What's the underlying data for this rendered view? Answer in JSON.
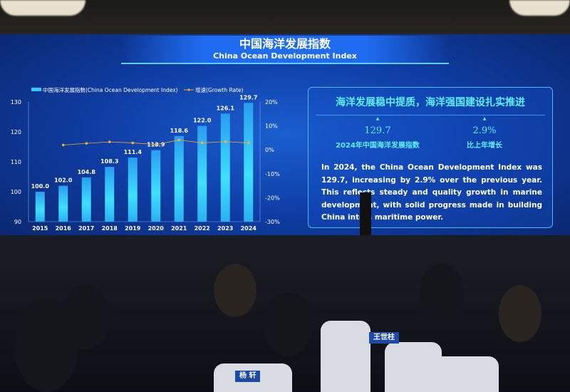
{
  "banner": {
    "title_zh": "中国海洋发展指数",
    "title_en": "China Ocean Development Index"
  },
  "chart_data": {
    "type": "bar+line",
    "categories": [
      "2015",
      "2016",
      "2017",
      "2018",
      "2019",
      "2020",
      "2021",
      "2022",
      "2023",
      "2024"
    ],
    "series": [
      {
        "name": "中国海洋发展指数(China Ocean Development Index)",
        "type": "bar",
        "axis": "left",
        "values": [
          100.0,
          102.0,
          104.8,
          108.3,
          111.4,
          113.9,
          118.6,
          122.0,
          126.1,
          129.7
        ],
        "labels": [
          "100.0",
          "102.0",
          "104.8",
          "108.3",
          "111.4",
          "113.9",
          "118.6",
          "122.0",
          "126.1",
          "129.7"
        ],
        "color": "#36c8ff"
      },
      {
        "name": "增速(Growth Rate)",
        "type": "line",
        "axis": "right",
        "values": [
          null,
          2.0,
          2.7,
          3.3,
          2.9,
          2.2,
          4.1,
          2.9,
          3.4,
          2.9
        ],
        "color": "#f0a830"
      }
    ],
    "ylim": [
      90,
      130
    ],
    "yticks": [
      "90",
      "100",
      "110",
      "120",
      "130"
    ],
    "y2lim": [
      -30,
      20
    ],
    "y2ticks": [
      "-30%",
      "-20%",
      "-10%",
      "0%",
      "10%",
      "20%"
    ],
    "legend": "top",
    "grid": false
  },
  "panel": {
    "headline": "海洋发展稳中提质，海洋强国建设扎实推进",
    "stats": [
      {
        "value": "129.7",
        "label": "2024年中国海洋发展指数"
      },
      {
        "value": "2.9%",
        "label": "比上年增长"
      }
    ],
    "body": "In 2024, the China Ocean Development Index was 129.7, increasing by 2.9% over the previous year. This reflects steady and quality growth in marine development, with solid progress made in building China into a maritime power."
  },
  "audience": {
    "name_cards": [
      "王世柱",
      "杨 轩"
    ]
  }
}
